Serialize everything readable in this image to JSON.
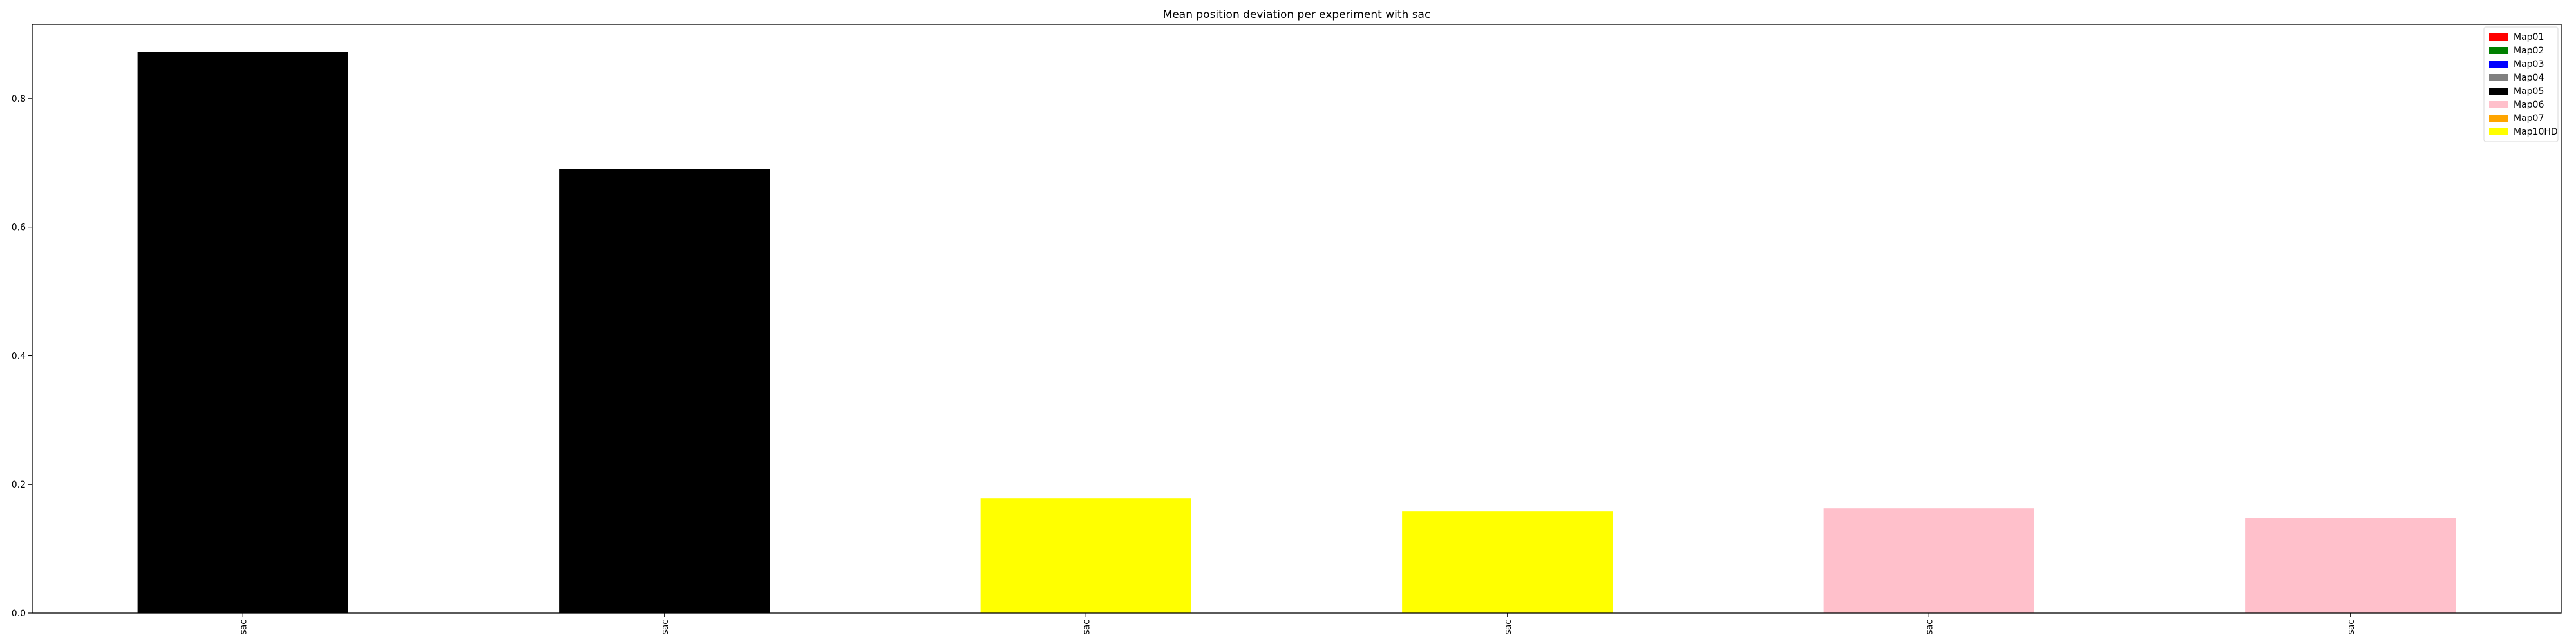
{
  "chart_data": {
    "type": "bar",
    "title": "Mean position deviation per experiment with sac",
    "xlabel": "",
    "ylabel": "",
    "categories": [
      "sac",
      "sac",
      "sac",
      "sac",
      "sac",
      "sac"
    ],
    "values": [
      0.872,
      0.69,
      0.178,
      0.158,
      0.163,
      0.148
    ],
    "bar_maps": [
      "Map05",
      "Map05",
      "Map10HD",
      "Map10HD",
      "Map06",
      "Map06"
    ],
    "ylim": [
      0,
      0.915
    ],
    "yticks": [
      0.0,
      0.2,
      0.4,
      0.6,
      0.8
    ],
    "ytick_labels": [
      "0.0",
      "0.2",
      "0.4",
      "0.6",
      "0.8"
    ],
    "grid": false,
    "legend_position": "top-right",
    "legend": [
      {
        "name": "Map01",
        "color": "#ff0000"
      },
      {
        "name": "Map02",
        "color": "#008000"
      },
      {
        "name": "Map03",
        "color": "#0000ff"
      },
      {
        "name": "Map04",
        "color": "#808080"
      },
      {
        "name": "Map05",
        "color": "#000000"
      },
      {
        "name": "Map06",
        "color": "#ffc0cb"
      },
      {
        "name": "Map07",
        "color": "#ffa500"
      },
      {
        "name": "Map10HD",
        "color": "#ffff00"
      }
    ]
  }
}
